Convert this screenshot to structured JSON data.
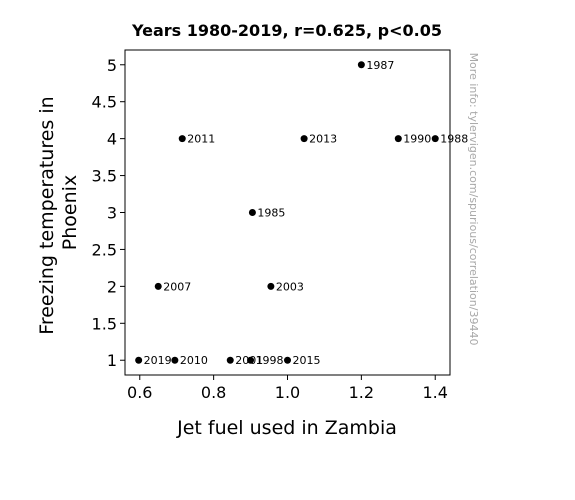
{
  "chart_data": {
    "type": "scatter",
    "title": "Years 1980-2019, r=0.625, p<0.05",
    "xlabel": "Jet fuel used in Zambia",
    "ylabel": "Freezing temperatures in Phoenix",
    "xlim": [
      0.56,
      1.44
    ],
    "ylim": [
      0.8,
      5.2
    ],
    "xticks": [
      0.6,
      0.8,
      1.0,
      1.2,
      1.4
    ],
    "xtick_labels": [
      "0.6",
      "0.8",
      "1.0",
      "1.2",
      "1.4"
    ],
    "yticks": [
      1,
      1.5,
      2,
      2.5,
      3,
      3.5,
      4,
      4.5,
      5
    ],
    "ytick_labels": [
      "1",
      "1.5",
      "2",
      "2.5",
      "3",
      "3.5",
      "4",
      "4.5",
      "5"
    ],
    "grid": false,
    "marker_color": "#000000",
    "points": [
      {
        "x": 0.597,
        "y": 1,
        "label": "2019"
      },
      {
        "x": 0.695,
        "y": 1,
        "label": "2010"
      },
      {
        "x": 0.845,
        "y": 1,
        "label": "2001"
      },
      {
        "x": 0.9,
        "y": 1,
        "label": "1998"
      },
      {
        "x": 1.0,
        "y": 1,
        "label": "2015"
      },
      {
        "x": 0.65,
        "y": 2,
        "label": "2007"
      },
      {
        "x": 0.955,
        "y": 2,
        "label": "2003"
      },
      {
        "x": 0.905,
        "y": 3,
        "label": "1985"
      },
      {
        "x": 0.715,
        "y": 4,
        "label": "2011"
      },
      {
        "x": 1.045,
        "y": 4,
        "label": "2013"
      },
      {
        "x": 1.3,
        "y": 4,
        "label": "1990"
      },
      {
        "x": 1.4,
        "y": 4,
        "label": "1988"
      },
      {
        "x": 1.2,
        "y": 5,
        "label": "1987"
      }
    ]
  },
  "watermark": "More info: tylervigen.com/spurious/correlation/39440"
}
